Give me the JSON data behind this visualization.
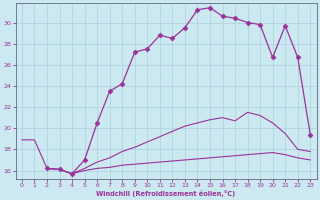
{
  "xlabel": "Windchill (Refroidissement éolien,°C)",
  "background_color": "#cce8f0",
  "grid_color": "#aad0dc",
  "line_color": "#993399",
  "xlim": [
    -0.5,
    23.5
  ],
  "ylim": [
    15.2,
    31.8
  ],
  "yticks": [
    16,
    18,
    20,
    22,
    24,
    26,
    28,
    30
  ],
  "xticks": [
    0,
    1,
    2,
    3,
    4,
    5,
    6,
    7,
    8,
    9,
    10,
    11,
    12,
    13,
    14,
    15,
    16,
    17,
    18,
    19,
    20,
    21,
    22,
    23
  ],
  "line_peaked_x": [
    2,
    3,
    4,
    5,
    6,
    7,
    8,
    9,
    10,
    11,
    12,
    13,
    14,
    15,
    16,
    17,
    18,
    19,
    20,
    21,
    22,
    23
  ],
  "line_peaked_y": [
    16.2,
    16.1,
    15.7,
    17.0,
    20.5,
    23.5,
    24.2,
    27.2,
    27.5,
    28.8,
    28.5,
    29.5,
    31.2,
    31.4,
    30.6,
    30.4,
    30.0,
    29.8,
    26.7,
    29.7,
    26.7,
    19.4
  ],
  "line_upper_x": [
    0,
    1,
    2,
    3,
    4,
    5,
    6,
    7,
    8,
    9,
    10,
    11,
    12,
    13,
    14,
    15,
    16,
    17,
    18,
    19,
    20,
    21,
    22,
    23
  ],
  "line_upper_y": [
    18.9,
    18.9,
    16.2,
    16.1,
    15.7,
    16.2,
    16.8,
    17.2,
    17.8,
    18.2,
    18.7,
    19.2,
    19.7,
    20.2,
    20.5,
    20.8,
    21.0,
    20.7,
    21.5,
    21.2,
    20.5,
    19.5,
    18.0,
    17.8
  ],
  "line_lower_x": [
    2,
    3,
    4,
    5,
    6,
    7,
    8,
    9,
    10,
    11,
    12,
    13,
    14,
    15,
    16,
    17,
    18,
    19,
    20,
    21,
    22,
    23
  ],
  "line_lower_y": [
    16.2,
    16.1,
    15.7,
    16.0,
    16.2,
    16.3,
    16.5,
    16.6,
    16.7,
    16.8,
    16.9,
    17.0,
    17.1,
    17.2,
    17.3,
    17.4,
    17.5,
    17.6,
    17.7,
    17.5,
    17.2,
    17.0
  ]
}
